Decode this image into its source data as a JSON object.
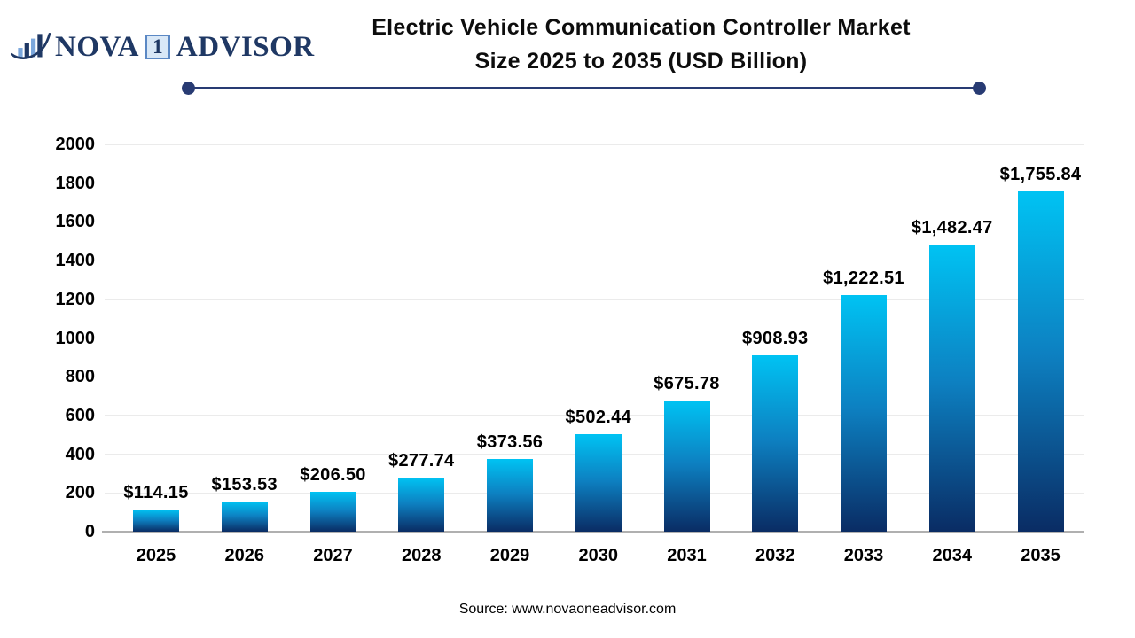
{
  "logo": {
    "part1": "NOVA",
    "badge": "1",
    "part2": "ADVISOR",
    "icon": "growth-bars-swoosh-icon",
    "navy": "#1f3864",
    "light_blue": "#7ba7dc"
  },
  "title": {
    "line1": "Electric Vehicle Communication Controller Market",
    "line2": "Size 2025 to 2035 (USD Billion)"
  },
  "footer": {
    "source": "Source: www.novaoneadvisor.com"
  },
  "chart_data": {
    "type": "bar",
    "title": "Electric Vehicle Communication Controller Market Size 2025 to 2035 (USD Billion)",
    "unit": "USD Billion",
    "categories": [
      "2025",
      "2026",
      "2027",
      "2028",
      "2029",
      "2030",
      "2031",
      "2032",
      "2033",
      "2034",
      "2035"
    ],
    "values": [
      114.15,
      153.53,
      206.5,
      277.74,
      373.56,
      502.44,
      675.78,
      908.93,
      1222.51,
      1482.47,
      1755.84
    ],
    "value_labels": [
      "$114.15",
      "$153.53",
      "$206.50",
      "$277.74",
      "$373.56",
      "$502.44",
      "$675.78",
      "$908.93",
      "$1,222.51",
      "$1,482.47",
      "$1,755.84"
    ],
    "xlabel": "",
    "ylabel": "",
    "ylim": [
      0,
      2000
    ],
    "y_ticks": [
      0,
      200,
      400,
      600,
      800,
      1000,
      1200,
      1400,
      1600,
      1800,
      2000
    ],
    "grid": true,
    "legend": false,
    "bar_color_top": "#00c3f3",
    "bar_color_mid": "#0d80c1",
    "bar_color_bottom": "#0a2c64",
    "gridline_color": "#ebebeb",
    "axis_line_color": "#b0b0b0",
    "label_color": "#000000"
  }
}
